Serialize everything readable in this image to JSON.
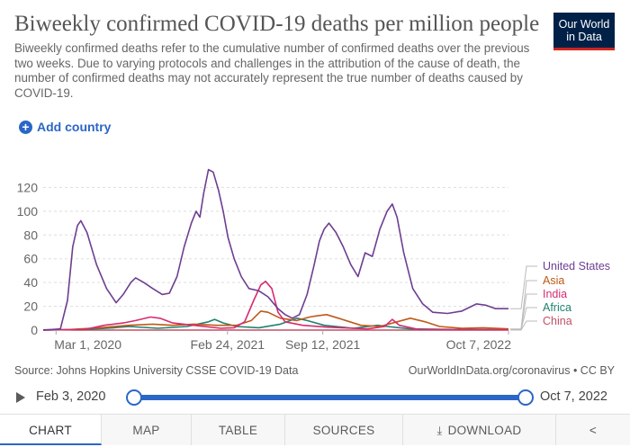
{
  "header": {
    "title": "Biweekly confirmed COVID-19 deaths per million people",
    "subtitle": "Biweekly confirmed deaths refer to the cumulative number of confirmed deaths over the previous two weeks. Due to varying protocols and challenges in the attribution of the cause of death, the number of confirmed deaths may not accurately represent the true number of deaths caused by COVID-19.",
    "logo_line1": "Our World",
    "logo_line2": "in Data"
  },
  "controls": {
    "add_country_label": "Add country",
    "plus_icon": "plus-circle-icon"
  },
  "chart_data": {
    "type": "line",
    "title": "Biweekly confirmed COVID-19 deaths per million people",
    "xlabel": "",
    "ylabel": "",
    "x_range": [
      "2020-02-03",
      "2022-10-07"
    ],
    "ylim": [
      0,
      140
    ],
    "yticks": [
      0,
      20,
      40,
      60,
      80,
      100,
      120
    ],
    "ytick_labels": [
      "0",
      "20",
      "40",
      "60",
      "80",
      "100",
      "120"
    ],
    "xticks": [
      "2020-03-01",
      "2021-02-24",
      "2021-09-12",
      "2022-10-07"
    ],
    "xtick_labels": [
      "Mar 1, 2020",
      "Feb 24, 2021",
      "Sep 12, 2021",
      "Oct 7, 2022"
    ],
    "grid": "horizontal dashed",
    "legend": "right (line-end labels)",
    "series": [
      {
        "name": "United States",
        "color": "#6d3e91",
        "points": [
          [
            "2020-02-03",
            0
          ],
          [
            "2020-03-10",
            1
          ],
          [
            "2020-03-25",
            25
          ],
          [
            "2020-04-05",
            70
          ],
          [
            "2020-04-15",
            88
          ],
          [
            "2020-04-22",
            92
          ],
          [
            "2020-05-05",
            82
          ],
          [
            "2020-05-25",
            55
          ],
          [
            "2020-06-15",
            35
          ],
          [
            "2020-07-05",
            23
          ],
          [
            "2020-07-20",
            30
          ],
          [
            "2020-08-05",
            40
          ],
          [
            "2020-08-15",
            44
          ],
          [
            "2020-09-01",
            40
          ],
          [
            "2020-09-20",
            35
          ],
          [
            "2020-10-10",
            30
          ],
          [
            "2020-10-25",
            31
          ],
          [
            "2020-11-10",
            45
          ],
          [
            "2020-11-25",
            70
          ],
          [
            "2020-12-10",
            90
          ],
          [
            "2020-12-20",
            100
          ],
          [
            "2020-12-28",
            95
          ],
          [
            "2021-01-05",
            115
          ],
          [
            "2021-01-15",
            135
          ],
          [
            "2021-01-25",
            133
          ],
          [
            "2021-02-05",
            118
          ],
          [
            "2021-02-15",
            100
          ],
          [
            "2021-02-25",
            78
          ],
          [
            "2021-03-10",
            60
          ],
          [
            "2021-03-25",
            45
          ],
          [
            "2021-04-10",
            35
          ],
          [
            "2021-05-01",
            33
          ],
          [
            "2021-05-20",
            28
          ],
          [
            "2021-06-10",
            18
          ],
          [
            "2021-06-25",
            13
          ],
          [
            "2021-07-10",
            10
          ],
          [
            "2021-07-25",
            13
          ],
          [
            "2021-08-10",
            30
          ],
          [
            "2021-08-25",
            55
          ],
          [
            "2021-09-05",
            75
          ],
          [
            "2021-09-15",
            85
          ],
          [
            "2021-09-25",
            90
          ],
          [
            "2021-10-10",
            82
          ],
          [
            "2021-10-25",
            70
          ],
          [
            "2021-11-10",
            55
          ],
          [
            "2021-11-25",
            45
          ],
          [
            "2021-12-10",
            65
          ],
          [
            "2021-12-25",
            62
          ],
          [
            "2022-01-10",
            85
          ],
          [
            "2022-01-25",
            100
          ],
          [
            "2022-02-05",
            106
          ],
          [
            "2022-02-15",
            95
          ],
          [
            "2022-03-01",
            65
          ],
          [
            "2022-03-20",
            35
          ],
          [
            "2022-04-10",
            22
          ],
          [
            "2022-05-01",
            15
          ],
          [
            "2022-06-01",
            14
          ],
          [
            "2022-07-01",
            16
          ],
          [
            "2022-08-01",
            22
          ],
          [
            "2022-08-20",
            21
          ],
          [
            "2022-09-10",
            18
          ],
          [
            "2022-10-07",
            18
          ]
        ]
      },
      {
        "name": "Asia",
        "color": "#c05917",
        "points": [
          [
            "2020-02-03",
            0
          ],
          [
            "2020-04-01",
            0.5
          ],
          [
            "2020-06-01",
            2
          ],
          [
            "2020-08-01",
            4
          ],
          [
            "2020-09-20",
            5
          ],
          [
            "2020-11-01",
            4
          ],
          [
            "2020-12-15",
            5
          ],
          [
            "2021-02-01",
            4
          ],
          [
            "2021-03-15",
            4
          ],
          [
            "2021-04-15",
            8
          ],
          [
            "2021-05-05",
            16
          ],
          [
            "2021-05-20",
            15
          ],
          [
            "2021-06-15",
            10
          ],
          [
            "2021-07-20",
            8
          ],
          [
            "2021-08-15",
            11
          ],
          [
            "2021-09-01",
            12
          ],
          [
            "2021-09-20",
            13
          ],
          [
            "2021-10-15",
            10
          ],
          [
            "2021-12-01",
            4
          ],
          [
            "2022-01-10",
            3
          ],
          [
            "2022-02-15",
            7
          ],
          [
            "2022-03-15",
            10
          ],
          [
            "2022-04-15",
            7
          ],
          [
            "2022-05-15",
            3
          ],
          [
            "2022-07-01",
            1.5
          ],
          [
            "2022-08-15",
            2
          ],
          [
            "2022-10-07",
            1
          ]
        ]
      },
      {
        "name": "India",
        "color": "#d62b6f",
        "points": [
          [
            "2020-02-03",
            0
          ],
          [
            "2020-05-01",
            0.5
          ],
          [
            "2020-06-10",
            4
          ],
          [
            "2020-07-20",
            6
          ],
          [
            "2020-08-15",
            8
          ],
          [
            "2020-09-15",
            11
          ],
          [
            "2020-10-05",
            10
          ],
          [
            "2020-11-01",
            6
          ],
          [
            "2020-12-15",
            4
          ],
          [
            "2021-02-10",
            1.5
          ],
          [
            "2021-03-10",
            2
          ],
          [
            "2021-04-01",
            7
          ],
          [
            "2021-04-20",
            25
          ],
          [
            "2021-05-05",
            38
          ],
          [
            "2021-05-15",
            41
          ],
          [
            "2021-05-28",
            35
          ],
          [
            "2021-06-10",
            15
          ],
          [
            "2021-06-25",
            7
          ],
          [
            "2021-08-01",
            4
          ],
          [
            "2021-09-20",
            2.5
          ],
          [
            "2021-12-15",
            1
          ],
          [
            "2022-01-20",
            3
          ],
          [
            "2022-02-05",
            9
          ],
          [
            "2022-02-20",
            4
          ],
          [
            "2022-04-01",
            0.5
          ],
          [
            "2022-06-15",
            0.3
          ],
          [
            "2022-10-07",
            0.2
          ]
        ]
      },
      {
        "name": "Africa",
        "color": "#20826f",
        "points": [
          [
            "2020-02-03",
            0
          ],
          [
            "2020-05-01",
            0.5
          ],
          [
            "2020-07-01",
            2
          ],
          [
            "2020-08-01",
            3
          ],
          [
            "2020-10-01",
            1.5
          ],
          [
            "2020-12-01",
            3
          ],
          [
            "2021-01-15",
            7
          ],
          [
            "2021-01-28",
            9
          ],
          [
            "2021-02-15",
            6
          ],
          [
            "2021-03-15",
            3
          ],
          [
            "2021-05-01",
            2
          ],
          [
            "2021-06-15",
            5
          ],
          [
            "2021-07-20",
            10
          ],
          [
            "2021-08-10",
            8
          ],
          [
            "2021-09-15",
            4
          ],
          [
            "2021-11-15",
            1.5
          ],
          [
            "2022-01-05",
            4
          ],
          [
            "2022-01-25",
            3
          ],
          [
            "2022-03-15",
            1
          ],
          [
            "2022-06-15",
            0.5
          ],
          [
            "2022-10-07",
            0.3
          ]
        ]
      },
      {
        "name": "China",
        "color": "#c15065",
        "points": [
          [
            "2020-02-03",
            0.2
          ],
          [
            "2020-02-20",
            0.3
          ],
          [
            "2020-04-15",
            0.1
          ],
          [
            "2020-06-01",
            0
          ],
          [
            "2022-10-07",
            0
          ]
        ]
      }
    ]
  },
  "footer": {
    "source": "Source: Johns Hopkins University CSSE COVID-19 Data",
    "url": "OurWorldInData.org/coronavirus • CC BY"
  },
  "timeline": {
    "start_label": "Feb 3, 2020",
    "end_label": "Oct 7, 2022",
    "play_icon": "play-icon"
  },
  "tabs": [
    {
      "label": "CHART",
      "active": true
    },
    {
      "label": "MAP"
    },
    {
      "label": "TABLE"
    },
    {
      "label": "SOURCES"
    },
    {
      "label": "DOWNLOAD",
      "icon": "download-icon"
    },
    {
      "label": "",
      "icon": "share-icon"
    }
  ]
}
